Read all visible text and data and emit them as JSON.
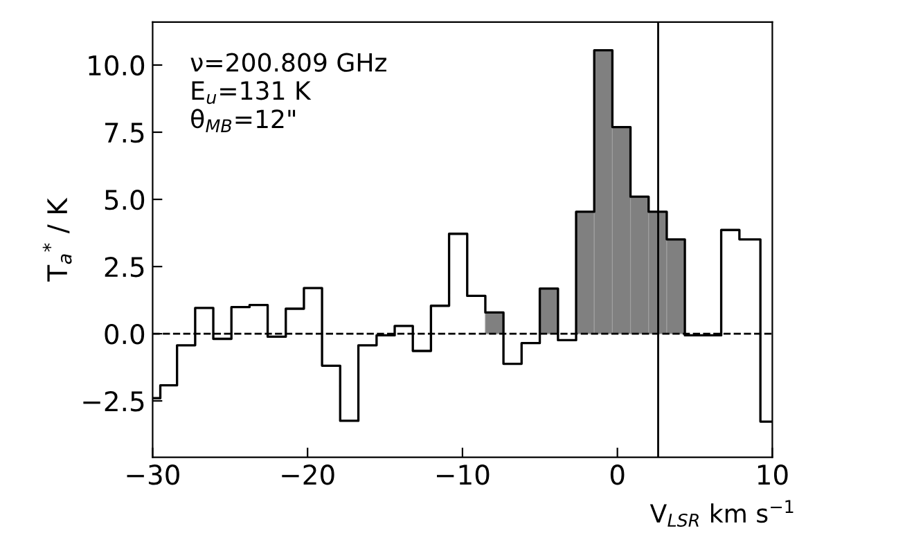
{
  "chart_data": {
    "type": "step",
    "series": [
      {
        "type": "bar",
        "color": "#808080",
        "x": [
          -7.94,
          -4.42,
          -2.08,
          -0.91,
          0.26,
          1.43,
          2.6,
          3.77
        ],
        "values": [
          0.79,
          1.68,
          4.54,
          10.55,
          7.69,
          5.1,
          4.54,
          3.51
        ]
      },
      {
        "color": "#000000",
        "x": [
          -30,
          -29.01,
          -27.84,
          -26.67,
          -25.5,
          -24.33,
          -23.16,
          -21.99,
          -20.82,
          -19.65,
          -18.48,
          -17.31,
          -16.13,
          -14.96,
          -13.79,
          -12.62,
          -11.45,
          -10.28,
          -9.11,
          -7.94,
          -6.77,
          -5.6,
          -4.42,
          -3.25,
          -2.08,
          -0.91,
          0.26,
          1.43,
          2.6,
          3.77,
          4.94,
          6.11,
          7.29,
          8.46,
          10
        ],
        "values": [
          -2.4,
          -1.92,
          -0.43,
          0.96,
          -0.19,
          0.99,
          1.07,
          -0.11,
          0.93,
          1.7,
          -1.19,
          -3.24,
          -0.43,
          -0.06,
          0.29,
          -0.64,
          1.04,
          3.72,
          1.41,
          0.79,
          -1.12,
          -0.35,
          1.68,
          -0.24,
          4.54,
          10.55,
          7.69,
          5.1,
          4.54,
          3.51,
          -0.06,
          -0.06,
          3.86,
          3.51,
          -3.27
        ]
      }
    ],
    "xlabel": "V$_{LSR}$ km s$^{−1}$",
    "ylabel": "T$_{a}$$^{*}$ / K",
    "annotations": [
      "ν=200.809 GHz",
      "E$_{u}$=131 K",
      "θ$_{MB}$=12\""
    ],
    "xlim": [
      -30,
      10
    ],
    "xticks": [
      {
        "value": -30,
        "label": "−30"
      },
      {
        "value": -20,
        "label": "−20"
      },
      {
        "value": -10,
        "label": "−10"
      },
      0,
      10
    ],
    "ylim": [
      -4.6,
      11.6
    ],
    "yticks": [
      {
        "value": -2.5,
        "label": "−2.5"
      },
      {
        "value": 0,
        "label": "0.0"
      },
      {
        "value": 2.5,
        "label": "2.5"
      },
      {
        "value": 5,
        "label": "5.0"
      },
      {
        "value": 7.5,
        "label": "7.5"
      },
      {
        "value": 10,
        "label": "10.0"
      }
    ],
    "ref_lines": [
      {
        "axis": "y",
        "value": 0,
        "color": "#000000",
        "line_style": "dashed"
      },
      {
        "axis": "x",
        "value": 2.63,
        "color": "#000000",
        "line_style": "solid"
      }
    ],
    "grid": false
  }
}
